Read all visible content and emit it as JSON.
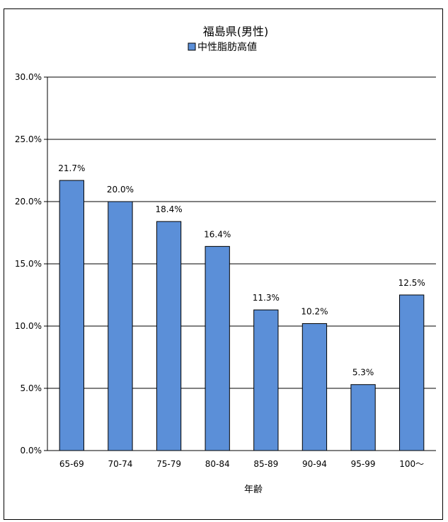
{
  "chart_data": {
    "type": "bar",
    "title": "福島県(男性)",
    "legend": "中性脂肪高値",
    "legend_position": "top",
    "xlabel": "年齢",
    "ylabel": "",
    "categories": [
      "65-69",
      "70-74",
      "75-79",
      "80-84",
      "85-89",
      "90-94",
      "95-99",
      "100～"
    ],
    "values": [
      21.7,
      20.0,
      18.4,
      16.4,
      11.3,
      10.2,
      5.3,
      12.5
    ],
    "data_labels": [
      "21.7%",
      "20.0%",
      "18.4%",
      "16.4%",
      "11.3%",
      "10.2%",
      "5.3%",
      "12.5%"
    ],
    "ylim": [
      0,
      30
    ],
    "yticks": [
      "0.0%",
      "5.0%",
      "10.0%",
      "15.0%",
      "20.0%",
      "25.0%",
      "30.0%"
    ],
    "grid": true,
    "colors": {
      "bar": "#5b8fd8",
      "bar_stroke": "#000000",
      "grid": "#000000"
    }
  }
}
